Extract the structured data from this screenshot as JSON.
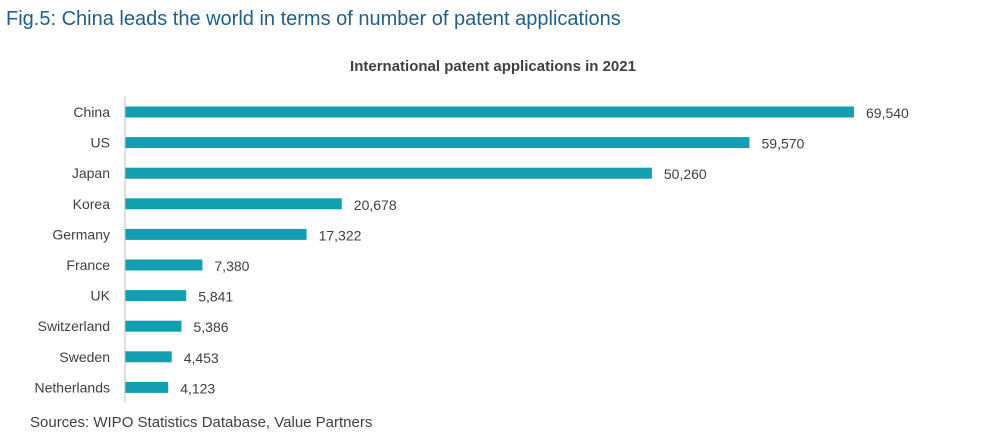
{
  "figure": {
    "title": "Fig.5: China leads the world in terms of number of patent applications",
    "source": "Sources: WIPO Statistics Database, Value Partners"
  },
  "colors": {
    "bar": "#139fb0",
    "title": "#1f5f8b",
    "text": "#404040",
    "axis": "#bfbfbf"
  },
  "chart_data": {
    "type": "bar",
    "orientation": "horizontal",
    "title": "International patent applications in 2021",
    "xlabel": "",
    "ylabel": "",
    "categories": [
      "China",
      "US",
      "Japan",
      "Korea",
      "Germany",
      "France",
      "UK",
      "Switzerland",
      "Sweden",
      "Netherlands"
    ],
    "values": [
      69540,
      59570,
      50260,
      20678,
      17322,
      7380,
      5841,
      5386,
      4453,
      4123
    ],
    "value_labels": [
      "69,540",
      "59,570",
      "50,260",
      "20,678",
      "17,322",
      "7,380",
      "5,841",
      "5,386",
      "4,453",
      "4,123"
    ],
    "xlim": [
      0,
      69540
    ],
    "grid": false,
    "legend": "none",
    "data_labels": true
  }
}
